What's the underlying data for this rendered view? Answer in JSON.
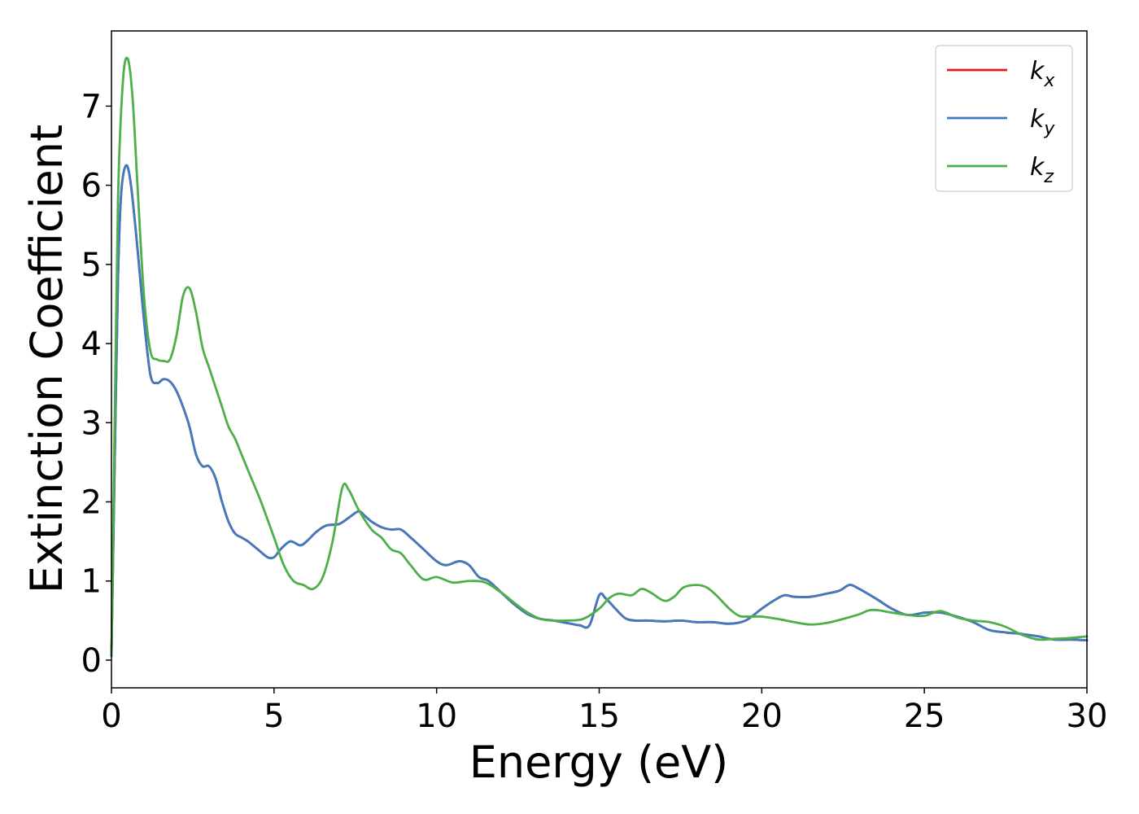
{
  "chart_data": {
    "type": "line",
    "xlabel": "Energy (eV)",
    "ylabel": "Extinction Coefficient",
    "xlim": [
      0,
      30
    ],
    "ylim": [
      -0.35,
      7.95
    ],
    "xticks": [
      0,
      5,
      10,
      15,
      20,
      25,
      30
    ],
    "yticks": [
      0,
      1,
      2,
      3,
      4,
      5,
      6,
      7
    ],
    "grid": false,
    "legend_position": "top-right",
    "series": [
      {
        "name": "k_x",
        "label_main": "k",
        "label_sub": "x",
        "color": "#e41a1c",
        "x": [
          0,
          0.1,
          0.2,
          0.3,
          0.45,
          0.6,
          0.8,
          1.0,
          1.2,
          1.4,
          1.6,
          1.8,
          2.0,
          2.2,
          2.4,
          2.6,
          2.8,
          3.0,
          3.2,
          3.4,
          3.6,
          3.8,
          4.0,
          4.2,
          4.5,
          4.8,
          5.0,
          5.2,
          5.5,
          5.8,
          6.0,
          6.3,
          6.6,
          7.0,
          7.3,
          7.6,
          7.8,
          8.0,
          8.3,
          8.6,
          8.9,
          9.2,
          9.6,
          10.0,
          10.3,
          10.7,
          11.0,
          11.3,
          11.6,
          12.0,
          12.4,
          12.8,
          13.2,
          13.6,
          14.0,
          14.4,
          14.7,
          15.0,
          15.2,
          15.5,
          15.8,
          16.1,
          16.5,
          17.0,
          17.5,
          18.0,
          18.5,
          19.0,
          19.5,
          20.0,
          20.4,
          20.7,
          21.0,
          21.5,
          22.0,
          22.4,
          22.7,
          23.0,
          23.5,
          24.0,
          24.5,
          25.0,
          25.5,
          26.0,
          26.5,
          27.0,
          27.5,
          28.0,
          28.5,
          29.0,
          29.5,
          30.0
        ],
        "values": [
          0.05,
          2.5,
          4.8,
          5.9,
          6.25,
          6.0,
          5.2,
          4.3,
          3.6,
          3.5,
          3.55,
          3.52,
          3.4,
          3.2,
          2.95,
          2.6,
          2.45,
          2.45,
          2.3,
          2.0,
          1.75,
          1.6,
          1.55,
          1.5,
          1.4,
          1.3,
          1.3,
          1.4,
          1.5,
          1.45,
          1.5,
          1.62,
          1.7,
          1.72,
          1.8,
          1.88,
          1.82,
          1.75,
          1.68,
          1.65,
          1.65,
          1.55,
          1.4,
          1.25,
          1.2,
          1.25,
          1.2,
          1.05,
          1.0,
          0.85,
          0.7,
          0.58,
          0.52,
          0.5,
          0.47,
          0.44,
          0.44,
          0.82,
          0.78,
          0.65,
          0.53,
          0.5,
          0.5,
          0.49,
          0.5,
          0.48,
          0.48,
          0.46,
          0.5,
          0.65,
          0.76,
          0.82,
          0.8,
          0.8,
          0.84,
          0.88,
          0.95,
          0.9,
          0.78,
          0.65,
          0.57,
          0.6,
          0.6,
          0.55,
          0.48,
          0.38,
          0.35,
          0.33,
          0.3,
          0.26,
          0.26,
          0.25
        ]
      },
      {
        "name": "k_y",
        "label_main": "k",
        "label_sub": "y",
        "color": "#3e7bbf",
        "x": [
          0,
          0.1,
          0.2,
          0.3,
          0.45,
          0.6,
          0.8,
          1.0,
          1.2,
          1.4,
          1.6,
          1.8,
          2.0,
          2.2,
          2.4,
          2.6,
          2.8,
          3.0,
          3.2,
          3.4,
          3.6,
          3.8,
          4.0,
          4.2,
          4.5,
          4.8,
          5.0,
          5.2,
          5.5,
          5.8,
          6.0,
          6.3,
          6.6,
          7.0,
          7.3,
          7.6,
          7.8,
          8.0,
          8.3,
          8.6,
          8.9,
          9.2,
          9.6,
          10.0,
          10.3,
          10.7,
          11.0,
          11.3,
          11.6,
          12.0,
          12.4,
          12.8,
          13.2,
          13.6,
          14.0,
          14.4,
          14.7,
          15.0,
          15.2,
          15.5,
          15.8,
          16.1,
          16.5,
          17.0,
          17.5,
          18.0,
          18.5,
          19.0,
          19.5,
          20.0,
          20.4,
          20.7,
          21.0,
          21.5,
          22.0,
          22.4,
          22.7,
          23.0,
          23.5,
          24.0,
          24.5,
          25.0,
          25.5,
          26.0,
          26.5,
          27.0,
          27.5,
          28.0,
          28.5,
          29.0,
          29.5,
          30.0
        ],
        "values": [
          0.05,
          2.5,
          4.8,
          5.9,
          6.25,
          6.0,
          5.2,
          4.3,
          3.6,
          3.5,
          3.55,
          3.52,
          3.4,
          3.2,
          2.95,
          2.6,
          2.45,
          2.45,
          2.3,
          2.0,
          1.75,
          1.6,
          1.55,
          1.5,
          1.4,
          1.3,
          1.3,
          1.4,
          1.5,
          1.45,
          1.5,
          1.62,
          1.7,
          1.72,
          1.8,
          1.88,
          1.82,
          1.75,
          1.68,
          1.65,
          1.65,
          1.55,
          1.4,
          1.25,
          1.2,
          1.25,
          1.2,
          1.05,
          1.0,
          0.85,
          0.7,
          0.58,
          0.52,
          0.5,
          0.47,
          0.44,
          0.44,
          0.82,
          0.78,
          0.65,
          0.53,
          0.5,
          0.5,
          0.49,
          0.5,
          0.48,
          0.48,
          0.46,
          0.5,
          0.65,
          0.76,
          0.82,
          0.8,
          0.8,
          0.84,
          0.88,
          0.95,
          0.9,
          0.78,
          0.65,
          0.57,
          0.6,
          0.6,
          0.55,
          0.48,
          0.38,
          0.35,
          0.33,
          0.3,
          0.26,
          0.26,
          0.25
        ]
      },
      {
        "name": "k_z",
        "label_main": "k",
        "label_sub": "z",
        "color": "#4daf4a",
        "x": [
          0,
          0.1,
          0.2,
          0.35,
          0.5,
          0.65,
          0.8,
          1.0,
          1.2,
          1.4,
          1.6,
          1.8,
          2.0,
          2.2,
          2.4,
          2.6,
          2.8,
          3.0,
          3.2,
          3.4,
          3.6,
          3.8,
          4.0,
          4.3,
          4.6,
          5.0,
          5.3,
          5.6,
          5.9,
          6.2,
          6.5,
          6.8,
          7.1,
          7.3,
          7.6,
          8.0,
          8.3,
          8.6,
          8.9,
          9.2,
          9.6,
          10.0,
          10.5,
          11.0,
          11.5,
          12.0,
          12.4,
          12.8,
          13.2,
          13.6,
          14.0,
          14.5,
          15.0,
          15.3,
          15.6,
          16.0,
          16.3,
          16.6,
          17.0,
          17.3,
          17.6,
          18.0,
          18.3,
          18.6,
          19.0,
          19.3,
          19.6,
          20.0,
          20.5,
          21.0,
          21.5,
          22.0,
          22.5,
          23.0,
          23.3,
          23.6,
          24.0,
          24.5,
          25.0,
          25.5,
          26.0,
          26.5,
          27.0,
          27.5,
          28.0,
          28.5,
          29.0,
          29.5,
          30.0
        ],
        "values": [
          0.05,
          3.0,
          5.8,
          7.3,
          7.6,
          7.1,
          6.0,
          4.6,
          3.9,
          3.8,
          3.78,
          3.8,
          4.1,
          4.6,
          4.7,
          4.4,
          3.95,
          3.7,
          3.45,
          3.2,
          2.95,
          2.8,
          2.6,
          2.3,
          2.0,
          1.55,
          1.2,
          1.0,
          0.95,
          0.9,
          1.05,
          1.5,
          2.18,
          2.15,
          1.9,
          1.65,
          1.55,
          1.4,
          1.35,
          1.2,
          1.02,
          1.05,
          0.98,
          1.0,
          0.98,
          0.85,
          0.72,
          0.6,
          0.52,
          0.5,
          0.5,
          0.52,
          0.65,
          0.78,
          0.84,
          0.82,
          0.9,
          0.85,
          0.75,
          0.8,
          0.92,
          0.95,
          0.92,
          0.82,
          0.65,
          0.56,
          0.55,
          0.55,
          0.52,
          0.48,
          0.45,
          0.47,
          0.52,
          0.58,
          0.63,
          0.63,
          0.6,
          0.57,
          0.56,
          0.62,
          0.54,
          0.5,
          0.48,
          0.42,
          0.32,
          0.26,
          0.27,
          0.28,
          0.3
        ]
      }
    ]
  }
}
